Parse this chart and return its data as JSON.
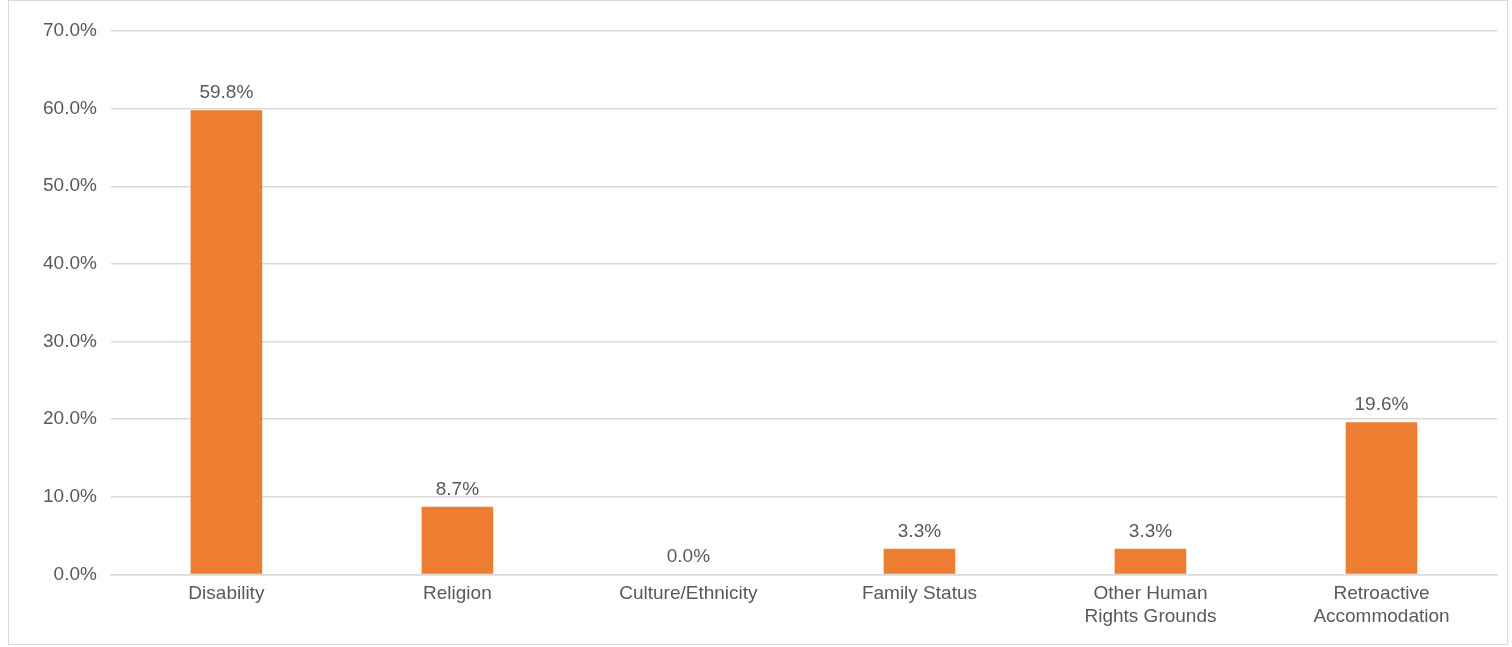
{
  "chart_data": {
    "type": "bar",
    "categories": [
      "Disability",
      "Religion",
      "Culture/Ethnicity",
      "Family Status",
      "Other Human Rights Grounds",
      "Retroactive Accommodation"
    ],
    "values": [
      59.8,
      8.7,
      0.0,
      3.3,
      3.3,
      19.6
    ],
    "value_labels": [
      "59.8%",
      "8.7%",
      "0.0%",
      "3.3%",
      "3.3%",
      "19.6%"
    ],
    "color": "#ed7d31",
    "ylim": [
      0,
      70
    ],
    "yticks": [
      {
        "value": 0,
        "label": "0.0%"
      },
      {
        "value": 10,
        "label": "10.0%"
      },
      {
        "value": 20,
        "label": "20.0%"
      },
      {
        "value": 30,
        "label": "30.0%"
      },
      {
        "value": 40,
        "label": "40.0%"
      },
      {
        "value": 50,
        "label": "50.0%"
      },
      {
        "value": 60,
        "label": "60.0%"
      },
      {
        "value": 70,
        "label": "70.0%"
      }
    ],
    "grid": "y"
  }
}
